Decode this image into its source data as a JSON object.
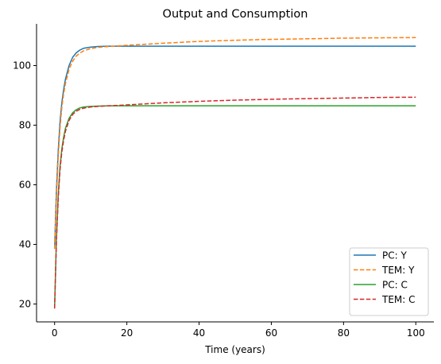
{
  "chart_data": {
    "type": "line",
    "title": "Output and Consumption",
    "xlabel": "Time (years)",
    "ylabel": "",
    "xlim": [
      -5,
      105
    ],
    "ylim": [
      14,
      114
    ],
    "xticks": [
      0,
      20,
      40,
      60,
      80,
      100
    ],
    "yticks": [
      20,
      40,
      60,
      80,
      100
    ],
    "grid": false,
    "legend_position": "lower-right",
    "series": [
      {
        "name": "PC: Y",
        "color": "#1f77b4",
        "dash": "solid",
        "x": [
          0,
          0.5,
          1,
          1.5,
          2,
          2.5,
          3,
          4,
          5,
          6,
          7,
          8,
          10,
          12,
          15,
          20,
          30,
          50,
          70,
          100
        ],
        "y": [
          38.5,
          58,
          71.5,
          81,
          87.5,
          92,
          95.5,
          100,
          102.8,
          104.3,
          105.2,
          105.8,
          106.2,
          106.4,
          106.5,
          106.5,
          106.5,
          106.5,
          106.5,
          106.5
        ]
      },
      {
        "name": "TEM: Y",
        "color": "#ff7f0e",
        "dash": "dashed",
        "x": [
          0,
          0.5,
          1,
          1.5,
          2,
          2.5,
          3,
          4,
          5,
          6,
          7,
          8,
          10,
          12,
          15,
          20,
          30,
          40,
          50,
          60,
          70,
          80,
          90,
          100
        ],
        "y": [
          38.5,
          56,
          69.5,
          79,
          86,
          90.5,
          94,
          98.8,
          101.5,
          103.2,
          104.2,
          104.9,
          105.7,
          106.1,
          106.4,
          106.8,
          107.5,
          108.1,
          108.5,
          108.8,
          109,
          109.2,
          109.3,
          109.4
        ]
      },
      {
        "name": "PC: C",
        "color": "#2ca02c",
        "dash": "solid",
        "x": [
          0,
          0.5,
          1,
          1.5,
          2,
          2.5,
          3,
          4,
          5,
          6,
          7,
          8,
          10,
          12,
          15,
          20,
          30,
          50,
          70,
          100
        ],
        "y": [
          18.5,
          42,
          56.5,
          66,
          72,
          76,
          79,
          82.3,
          84.2,
          85.2,
          85.8,
          86.1,
          86.3,
          86.4,
          86.5,
          86.5,
          86.5,
          86.5,
          86.5,
          86.5
        ]
      },
      {
        "name": "TEM: C",
        "color": "#d62728",
        "dash": "dashed",
        "x": [
          0,
          0.5,
          1,
          1.5,
          2,
          2.5,
          3,
          4,
          5,
          6,
          7,
          8,
          10,
          12,
          15,
          20,
          30,
          40,
          50,
          60,
          70,
          80,
          90,
          100
        ],
        "y": [
          18.5,
          41,
          55.5,
          65,
          71,
          75,
          78,
          81.6,
          83.6,
          84.7,
          85.3,
          85.7,
          86.1,
          86.3,
          86.5,
          86.8,
          87.5,
          88,
          88.4,
          88.7,
          88.9,
          89.1,
          89.3,
          89.4
        ]
      }
    ]
  }
}
